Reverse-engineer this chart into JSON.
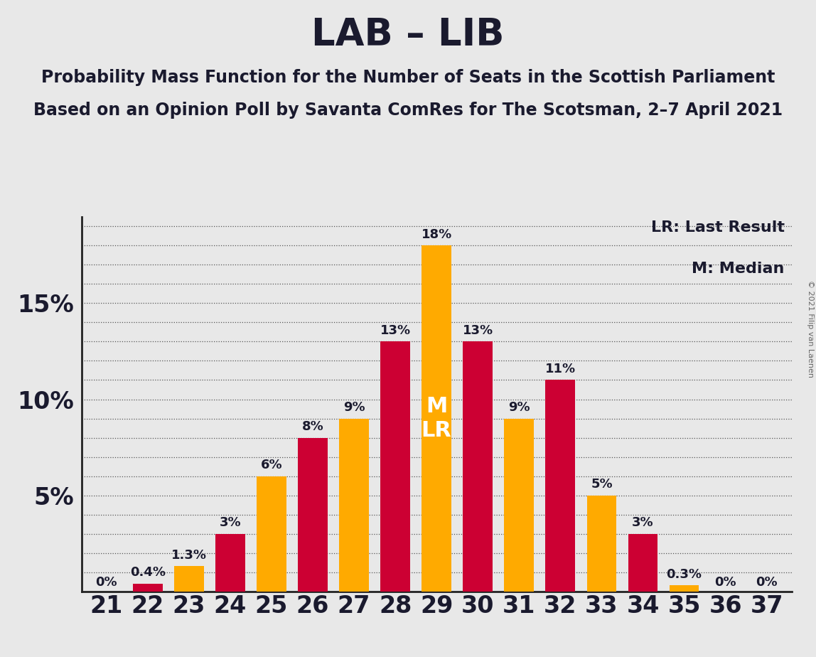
{
  "title": "LAB – LIB",
  "subtitle1": "Probability Mass Function for the Number of Seats in the Scottish Parliament",
  "subtitle2": "Based on an Opinion Poll by Savanta ComRes for The Scotsman, 2–7 April 2021",
  "copyright": "© 2021 Filip van Laenen",
  "background_color": "#e8e8e8",
  "bar_color_lab": "#cc0033",
  "bar_color_lib": "#ffaa00",
  "seats": [
    21,
    22,
    23,
    24,
    25,
    26,
    27,
    28,
    29,
    30,
    31,
    32,
    33,
    34,
    35,
    36,
    37
  ],
  "values": [
    0.0,
    0.4,
    1.3,
    3.0,
    6.0,
    8.0,
    9.0,
    13.0,
    18.0,
    13.0,
    9.0,
    11.0,
    5.0,
    3.0,
    0.3,
    0.0,
    0.0
  ],
  "colors": [
    "#cc0033",
    "#cc0033",
    "#ffaa00",
    "#cc0033",
    "#ffaa00",
    "#cc0033",
    "#ffaa00",
    "#cc0033",
    "#ffaa00",
    "#cc0033",
    "#ffaa00",
    "#cc0033",
    "#ffaa00",
    "#cc0033",
    "#ffaa00",
    "#cc0033",
    "#cc0033"
  ],
  "labels": [
    "0%",
    "0.4%",
    "1.3%",
    "3%",
    "6%",
    "8%",
    "9%",
    "13%",
    "18%",
    "13%",
    "9%",
    "11%",
    "5%",
    "3%",
    "0.3%",
    "0%",
    "0%"
  ],
  "label_show": [
    true,
    true,
    true,
    true,
    true,
    true,
    true,
    true,
    true,
    true,
    true,
    true,
    true,
    true,
    true,
    true,
    true
  ],
  "median_bar_idx": 8,
  "lr_bar_idx": 8,
  "ylim": [
    0,
    19.5
  ],
  "yticks": [
    5,
    10,
    15
  ],
  "ytick_labels": [
    "5%",
    "10%",
    "15%"
  ],
  "grid_yticks": [
    1,
    2,
    3,
    4,
    5,
    6,
    7,
    8,
    9,
    10,
    11,
    12,
    13,
    14,
    15,
    16,
    17,
    18,
    19
  ],
  "title_fontsize": 38,
  "subtitle_fontsize": 17,
  "bar_label_fontsize": 13,
  "xtick_fontsize": 24,
  "ytick_fontsize": 24,
  "legend_fontsize": 16,
  "copyright_fontsize": 8
}
